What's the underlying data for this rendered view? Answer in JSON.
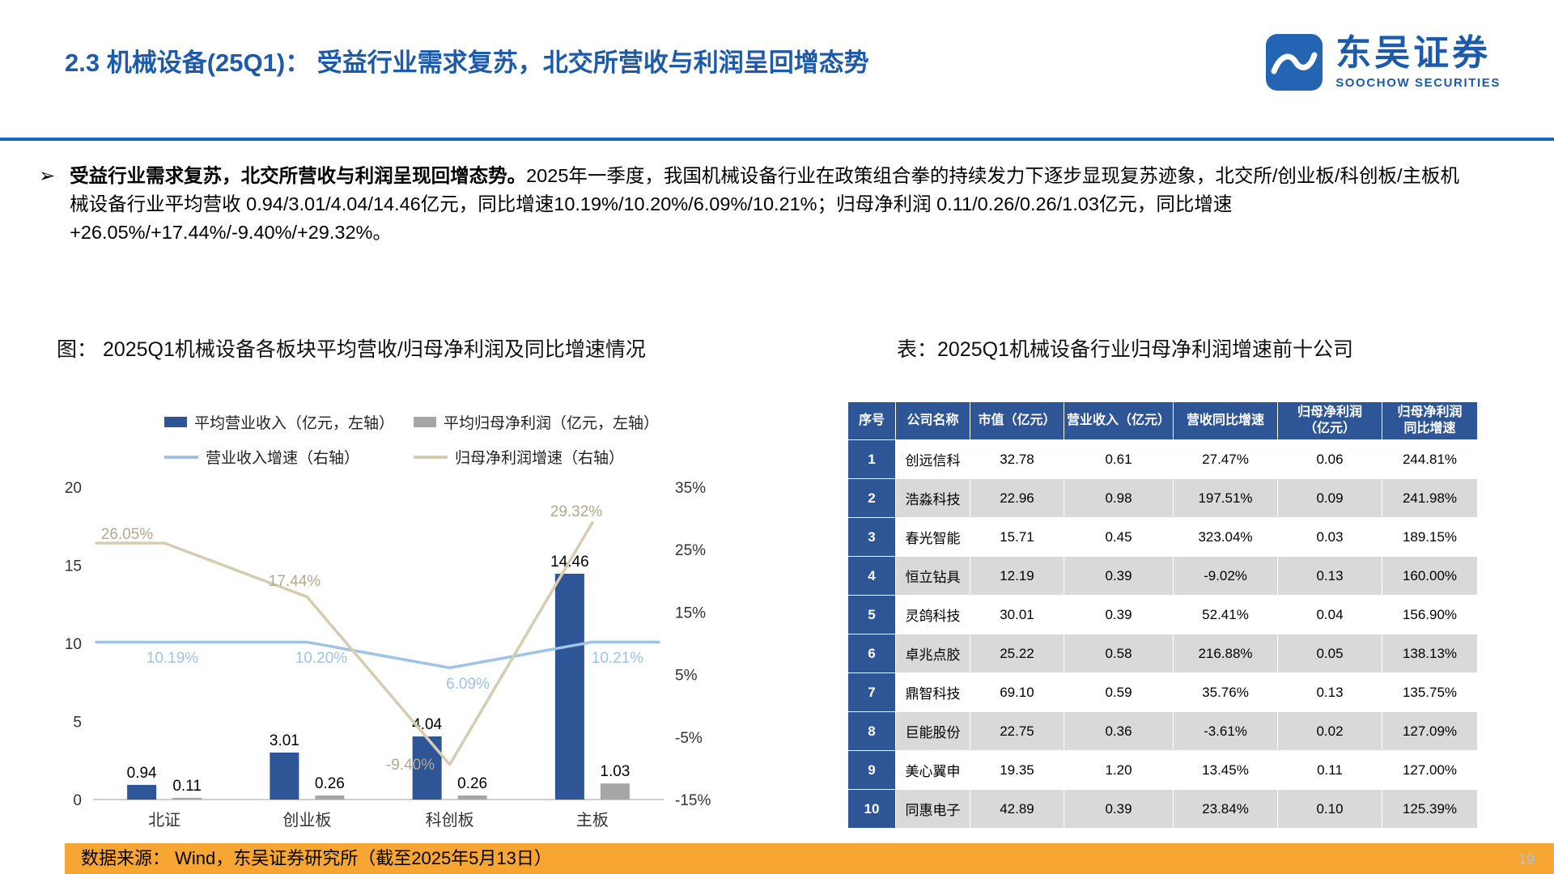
{
  "header": {
    "title": "2.3 机械设备(25Q1)： 受益行业需求复苏，北交所营收与利润呈回增态势",
    "logo_name": "东吴证券",
    "logo_subtitle": "SOOCHOW SECURITIES"
  },
  "summary": {
    "lead_bold": "受益行业需求复苏，北交所营收与利润呈现回增态势。",
    "body": "2025年一季度，我国机械设备行业在政策组合拳的持续发力下逐步显现复苏迹象，北交所/创业板/科创板/主板机械设备行业平均营收 0.94/3.01/4.04/14.46亿元，同比增速10.19%/10.20%/6.09%/10.21%；归母净利润 0.11/0.26/0.26/1.03亿元，同比增速+26.05%/+17.44%/-9.40%/+29.32%。"
  },
  "figure": {
    "title": "图： 2025Q1机械设备各板块平均营收/归母净利润及同比增速情况"
  },
  "chart_data": {
    "type": "bar",
    "subtype": "combo-bar-line-dual-axis",
    "categories": [
      "北证",
      "创业板",
      "科创板",
      "主板"
    ],
    "series": [
      {
        "name": "平均营业收入（亿元，左轴）",
        "type": "bar",
        "axis": "left",
        "color": "#2E5595",
        "values": [
          0.94,
          3.01,
          4.04,
          14.46
        ]
      },
      {
        "name": "平均归母净利润（亿元，左轴）",
        "type": "bar",
        "axis": "left",
        "color": "#A6A6A6",
        "values": [
          0.11,
          0.26,
          0.26,
          1.03
        ]
      },
      {
        "name": "营业收入增速（右轴）",
        "type": "line",
        "axis": "right",
        "color": "#9DC3E6",
        "values": [
          10.19,
          10.2,
          6.09,
          10.21
        ],
        "labels": [
          "10.19%",
          "10.20%",
          "6.09%",
          "10.21%"
        ]
      },
      {
        "name": "归母净利润增速（右轴）",
        "type": "line",
        "axis": "right",
        "color": "#D6CDB0",
        "values": [
          26.05,
          17.44,
          -9.4,
          29.32
        ],
        "labels": [
          "26.05%",
          "17.44%",
          "-9.40%",
          "29.32%"
        ]
      }
    ],
    "left_axis": {
      "min": 0,
      "max": 20,
      "ticks": [
        0,
        5,
        10,
        15,
        20
      ]
    },
    "right_axis": {
      "min": -15,
      "max": 35,
      "ticks": [
        "-15%",
        "-5%",
        "5%",
        "15%",
        "25%",
        "35%"
      ]
    },
    "grid": false,
    "legend_position": "top"
  },
  "table": {
    "title": "表：2025Q1机械设备行业归母净利润增速前十公司",
    "headers": [
      "序号",
      "公司名称",
      "市值（亿元）",
      "营业收入（亿元）",
      "营收同比增速",
      "归母净利润\n（亿元）",
      "归母净利润\n同比增速"
    ],
    "rows": [
      [
        "1",
        "创远信科",
        "32.78",
        "0.61",
        "27.47%",
        "0.06",
        "244.81%"
      ],
      [
        "2",
        "浩淼科技",
        "22.96",
        "0.98",
        "197.51%",
        "0.09",
        "241.98%"
      ],
      [
        "3",
        "春光智能",
        "15.71",
        "0.45",
        "323.04%",
        "0.03",
        "189.15%"
      ],
      [
        "4",
        "恒立钻具",
        "12.19",
        "0.39",
        "-9.02%",
        "0.13",
        "160.00%"
      ],
      [
        "5",
        "灵鸽科技",
        "30.01",
        "0.39",
        "52.41%",
        "0.04",
        "156.90%"
      ],
      [
        "6",
        "卓兆点胶",
        "25.22",
        "0.58",
        "216.88%",
        "0.05",
        "138.13%"
      ],
      [
        "7",
        "鼎智科技",
        "69.10",
        "0.59",
        "35.76%",
        "0.13",
        "135.75%"
      ],
      [
        "8",
        "巨能股份",
        "22.75",
        "0.36",
        "-3.61%",
        "0.02",
        "127.09%"
      ],
      [
        "9",
        "美心翼申",
        "19.35",
        "1.20",
        "13.45%",
        "0.11",
        "127.00%"
      ],
      [
        "10",
        "同惠电子",
        "42.89",
        "0.39",
        "23.84%",
        "0.10",
        "125.39%"
      ]
    ]
  },
  "footer": {
    "source": "数据来源： Wind，东吴证券研究所（截至2025年5月13日）",
    "page": "19"
  },
  "colors": {
    "title_blue": "#1D5AA9",
    "divider_blue": "#1A66BE",
    "table_header_bg": "#2E5595",
    "table_alt_row": "#D9D9D9",
    "footer_orange": "#F7A634",
    "bar_revenue": "#2E5595",
    "bar_profit": "#A6A6A6",
    "line_revenue_growth": "#9DC3E6",
    "line_profit_growth": "#D6CDB0"
  }
}
